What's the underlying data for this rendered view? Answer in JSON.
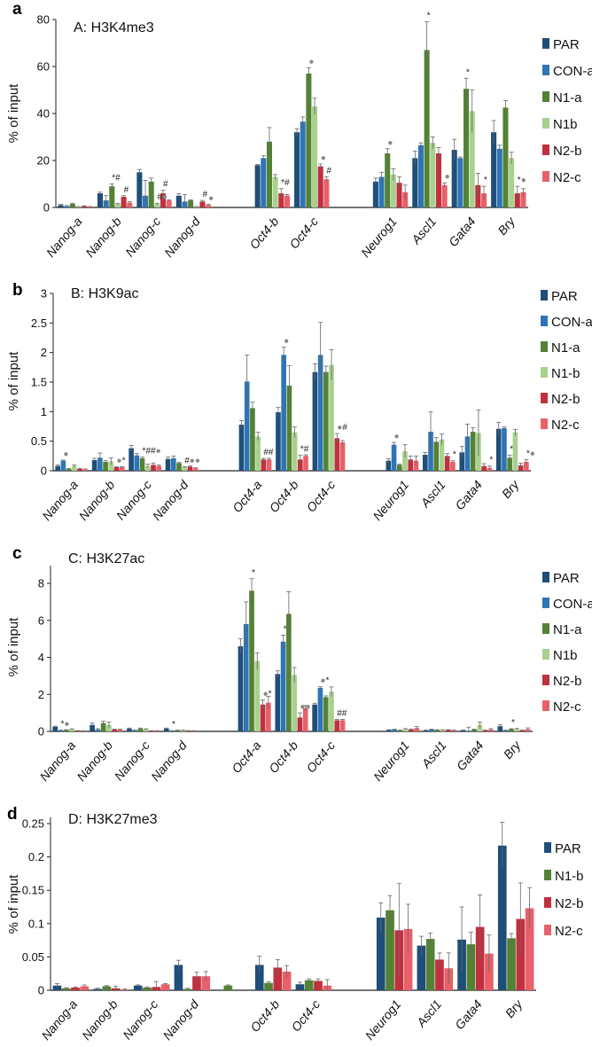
{
  "chart_data": [
    {
      "type": "bar",
      "panel_letter": "a",
      "title": "A: H3K4me3",
      "ylabel": "% of input",
      "ylim": [
        0,
        80
      ],
      "yticks": [
        0,
        20,
        40,
        60,
        80
      ],
      "ytick_labels": [
        "0",
        "20",
        "40",
        "60",
        "80"
      ],
      "categories": [
        "Nanog-a",
        "Nanog-b",
        "Nanog-c",
        "Nanog-d",
        "",
        "Oct4-b",
        "Oct4-c",
        "",
        "Neurog1",
        "Ascl1",
        "Gata4",
        "Bry"
      ],
      "legend_position": "right",
      "series": [
        {
          "name": "PAR",
          "color": "#1f4e79",
          "values": [
            1,
            6,
            15,
            5,
            null,
            18,
            32,
            null,
            11,
            21,
            24.5,
            32
          ],
          "err": [
            0.3,
            0.5,
            1,
            0.8,
            null,
            0.3,
            1.5,
            null,
            1.5,
            3,
            4.5,
            5
          ]
        },
        {
          "name": "CON-a",
          "color": "#2e75b6",
          "values": [
            0.5,
            3,
            5,
            2.5,
            null,
            21,
            36.5,
            null,
            13,
            26.5,
            21,
            25
          ],
          "err": [
            0.3,
            2,
            6.5,
            3,
            null,
            1,
            2,
            null,
            2,
            1,
            0.5,
            1.5
          ]
        },
        {
          "name": "N1-a",
          "color": "#548235",
          "values": [
            1.5,
            9,
            11,
            3,
            null,
            28,
            57,
            null,
            23,
            67,
            50.5,
            42.5
          ],
          "err": [
            0.3,
            1,
            1.5,
            0.3,
            null,
            6,
            2.5,
            null,
            2,
            12,
            4.5,
            3
          ]
        },
        {
          "name": "N1b",
          "color": "#a9d18e",
          "values": [
            0.3,
            1.5,
            1.5,
            0.3,
            null,
            13,
            43,
            null,
            14,
            27.5,
            41,
            21
          ],
          "err": [
            0.1,
            0.3,
            0.3,
            0.1,
            null,
            1,
            3.5,
            null,
            2.5,
            2.5,
            9,
            2.5
          ]
        },
        {
          "name": "N2-b",
          "color": "#c0303f",
          "values": [
            0.5,
            4.5,
            6,
            2.5,
            null,
            6,
            17.5,
            null,
            10.5,
            23,
            9.5,
            6
          ],
          "err": [
            0.2,
            0.5,
            1.3,
            0.5,
            null,
            2,
            1,
            null,
            2.5,
            2.5,
            5,
            3
          ]
        },
        {
          "name": "N2-c",
          "color": "#e8606a",
          "values": [
            0.3,
            2,
            3,
            1,
            null,
            5,
            12,
            null,
            6.5,
            9.5,
            6,
            6.5
          ],
          "err": [
            0.1,
            0.5,
            0.3,
            0.3,
            null,
            0.5,
            1,
            null,
            3,
            1,
            3,
            1.5
          ]
        }
      ],
      "annotations": [
        {
          "cat": 1,
          "series": 2,
          "text": "*#"
        },
        {
          "cat": 1,
          "series": 4,
          "text": "#"
        },
        {
          "cat": 2,
          "series": 3,
          "text": "#●"
        },
        {
          "cat": 2,
          "series": 4,
          "text": "#"
        },
        {
          "cat": 3,
          "series": 4,
          "text": "#"
        },
        {
          "cat": 3,
          "series": 5,
          "text": "●"
        },
        {
          "cat": 5,
          "series": 4,
          "text": "*#"
        },
        {
          "cat": 6,
          "series": 2,
          "text": "●"
        },
        {
          "cat": 6,
          "series": 4,
          "text": "●"
        },
        {
          "cat": 6,
          "series": 5,
          "text": "#"
        },
        {
          "cat": 8,
          "series": 2,
          "text": "●"
        },
        {
          "cat": 9,
          "series": 2,
          "text": "*"
        },
        {
          "cat": 9,
          "series": 5,
          "text": "●"
        },
        {
          "cat": 10,
          "series": 2,
          "text": "*"
        },
        {
          "cat": 10,
          "series": 5,
          "text": "*"
        },
        {
          "cat": 11,
          "series": 4,
          "text": "*●"
        }
      ]
    },
    {
      "type": "bar",
      "panel_letter": "b",
      "title": "B: H3K9ac",
      "ylabel": "% of input",
      "ylim": [
        0,
        3
      ],
      "yticks": [
        0,
        0.5,
        1,
        1.5,
        2,
        2.5,
        3
      ],
      "ytick_labels": [
        "0",
        "0.5",
        "1",
        "1.5",
        "2",
        "2.5",
        "3"
      ],
      "categories": [
        "Nanog-a",
        "Nanog-b",
        "Nanog-c",
        "Nanog-d",
        "",
        "Oct4-a",
        "Oct4-b",
        "Oct4-c",
        "",
        "Neurog1",
        "Ascl1",
        "Gata4",
        "Bry"
      ],
      "legend_position": "right",
      "series": [
        {
          "name": "PAR",
          "color": "#1f4e79",
          "values": [
            0.08,
            0.18,
            0.38,
            0.2,
            null,
            0.78,
            0.99,
            1.67,
            null,
            0.17,
            0.27,
            0.31,
            0.71
          ],
          "err": [
            0.02,
            0.03,
            0.05,
            0.03,
            null,
            0.07,
            0.08,
            0.14,
            null,
            0.03,
            0.04,
            0.1,
            0.11
          ]
        },
        {
          "name": "CON-a",
          "color": "#2e75b6",
          "values": [
            0.17,
            0.22,
            0.26,
            0.21,
            null,
            1.51,
            1.96,
            1.96,
            null,
            0.44,
            0.66,
            0.58,
            0.72
          ],
          "err": [
            0.01,
            0.08,
            0.03,
            0.04,
            null,
            0.45,
            0.13,
            0.55,
            null,
            0.04,
            0.34,
            0.21,
            0.02
          ]
        },
        {
          "name": "N1-a",
          "color": "#548235",
          "values": [
            0.03,
            0.15,
            0.21,
            0.13,
            null,
            1.06,
            1.44,
            1.67,
            null,
            0.1,
            0.49,
            0.66,
            0.22
          ],
          "err": [
            0.01,
            0.02,
            0.02,
            0.01,
            null,
            0.1,
            0.34,
            0.1,
            null,
            0.01,
            0.07,
            0.07,
            0.04
          ]
        },
        {
          "name": "N1-b",
          "color": "#a9d18e",
          "values": [
            0.08,
            0.16,
            0.08,
            0.06,
            null,
            0.58,
            0.65,
            1.79,
            null,
            0.33,
            0.53,
            0.64,
            0.65
          ],
          "err": [
            0.02,
            0.06,
            0.03,
            0.01,
            null,
            0.07,
            0.09,
            0.26,
            null,
            0.11,
            0.09,
            0.39,
            0.05
          ]
        },
        {
          "name": "N2-b",
          "color": "#c0303f",
          "values": [
            0.03,
            0.06,
            0.1,
            0.07,
            null,
            0.19,
            0.19,
            0.55,
            null,
            0.19,
            0.25,
            0.08,
            0.09
          ],
          "err": [
            0.01,
            0.01,
            0.03,
            0.01,
            null,
            0.02,
            0.07,
            0.08,
            null,
            0.06,
            0.04,
            0.04,
            0.04
          ]
        },
        {
          "name": "N2-c",
          "color": "#e8606a",
          "values": [
            0.02,
            0.06,
            0.08,
            0.04,
            null,
            0.19,
            0.25,
            0.48,
            null,
            0.17,
            0.15,
            0.05,
            0.15
          ],
          "err": [
            0.01,
            0.01,
            0.02,
            0.01,
            null,
            0.02,
            0.02,
            0.03,
            null,
            0.08,
            0.02,
            0.03,
            0.04
          ]
        }
      ],
      "annotations": [
        {
          "cat": 0,
          "series": 1,
          "text": "●"
        },
        {
          "cat": 1,
          "series": 4,
          "text": "●*"
        },
        {
          "cat": 2,
          "series": 2,
          "text": "*##●"
        },
        {
          "cat": 3,
          "series": 3,
          "text": "#●●"
        },
        {
          "cat": 5,
          "series": 4,
          "text": "##"
        },
        {
          "cat": 6,
          "series": 1,
          "text": "●"
        },
        {
          "cat": 6,
          "series": 4,
          "text": "*#"
        },
        {
          "cat": 7,
          "series": 4,
          "text": "●#"
        },
        {
          "cat": 9,
          "series": 1,
          "text": "●"
        },
        {
          "cat": 10,
          "series": 5,
          "text": "*"
        },
        {
          "cat": 11,
          "series": 5,
          "text": "*"
        },
        {
          "cat": 12,
          "series": 2,
          "text": "*"
        },
        {
          "cat": 12,
          "series": 5,
          "text": "*●"
        }
      ]
    },
    {
      "type": "bar",
      "panel_letter": "c",
      "title": "C: H3K27ac",
      "ylabel": "% of input",
      "ylim": [
        0,
        9
      ],
      "yticks": [
        0,
        2,
        4,
        6,
        8
      ],
      "ytick_labels": [
        "0",
        "2",
        "4",
        "6",
        "8"
      ],
      "categories": [
        "Nanog-a",
        "Nanog-b",
        "Nanog-c",
        "Nanog-d",
        "",
        "Oct4-a",
        "Oct4-b",
        "Oct4-c",
        "",
        "Neurog1",
        "Ascl1",
        "Gata4",
        "Bry"
      ],
      "legend_position": "right",
      "series": [
        {
          "name": "PAR",
          "color": "#1f4e79",
          "values": [
            0.25,
            0.35,
            0.15,
            0.15,
            null,
            4.6,
            3.1,
            1.45,
            null,
            0.07,
            0.05,
            0.05,
            0.28
          ],
          "err": [
            0.03,
            0.1,
            0.03,
            0.03,
            null,
            0.4,
            0.17,
            0.07,
            null,
            0.02,
            0.02,
            0.02,
            0.08
          ]
        },
        {
          "name": "CON-a",
          "color": "#2e75b6",
          "values": [
            0.05,
            0.1,
            0.05,
            0.03,
            null,
            5.8,
            4.85,
            2.35,
            null,
            0.1,
            0.1,
            0.03,
            0.05
          ],
          "err": [
            0.02,
            0.05,
            0.02,
            0.01,
            null,
            1.2,
            0.35,
            0.06,
            null,
            0.02,
            0.02,
            0.2,
            0.02
          ]
        },
        {
          "name": "N1-a",
          "color": "#548235",
          "values": [
            0.07,
            0.45,
            0.15,
            0.05,
            null,
            7.6,
            6.35,
            1.85,
            null,
            0.05,
            0.07,
            0.1,
            0.12
          ],
          "err": [
            0.02,
            0.1,
            0.03,
            0.02,
            null,
            0.65,
            1.2,
            0.07,
            null,
            0.02,
            0.02,
            0.02,
            0.02
          ]
        },
        {
          "name": "N1b",
          "color": "#a9d18e",
          "values": [
            0.12,
            0.35,
            0.12,
            0.05,
            null,
            3.8,
            3.05,
            2.15,
            null,
            0.12,
            0.07,
            0.35,
            0.12
          ],
          "err": [
            0.02,
            0.15,
            0.02,
            0.02,
            null,
            0.45,
            0.4,
            0.25,
            null,
            0.03,
            0.02,
            0.15,
            0.04
          ]
        },
        {
          "name": "N2-b",
          "color": "#c0303f",
          "values": [
            0.03,
            0.1,
            0.03,
            0.03,
            null,
            1.45,
            0.75,
            0.6,
            null,
            0.1,
            0.07,
            0.05,
            0.05
          ],
          "err": [
            0.01,
            0.02,
            0.01,
            0.01,
            null,
            0.25,
            0.25,
            0.05,
            null,
            0.03,
            0.02,
            0.02,
            0.02
          ]
        },
        {
          "name": "N2-c",
          "color": "#e8606a",
          "values": [
            0.03,
            0.1,
            0.03,
            0.03,
            null,
            1.55,
            1.25,
            0.6,
            null,
            0.18,
            0.05,
            0.1,
            0.12
          ],
          "err": [
            0.01,
            0.02,
            0.01,
            0.01,
            null,
            0.35,
            0.15,
            0.05,
            null,
            0.08,
            0.02,
            0.05,
            0.07
          ]
        }
      ],
      "annotations": [
        {
          "cat": 0,
          "series": 1,
          "text": "*●"
        },
        {
          "cat": 3,
          "series": 1,
          "text": "*"
        },
        {
          "cat": 5,
          "series": 2,
          "text": "*"
        },
        {
          "cat": 5,
          "series": 4,
          "text": "●*"
        },
        {
          "cat": 6,
          "series": 1,
          "text": "*"
        },
        {
          "cat": 6,
          "series": 4,
          "text": "●●"
        },
        {
          "cat": 7,
          "series": 1,
          "text": "●*"
        },
        {
          "cat": 7,
          "series": 4,
          "text": "##"
        },
        {
          "cat": 12,
          "series": 2,
          "text": "*"
        }
      ]
    },
    {
      "type": "bar",
      "panel_letter": "d",
      "title": "D: H3K27me3",
      "ylabel": "% of input",
      "ylim": [
        0,
        0.25
      ],
      "yticks": [
        0,
        0.05,
        0.1,
        0.15,
        0.2,
        0.25
      ],
      "ytick_labels": [
        "0",
        "0.05",
        "0.1",
        "0.15",
        "0.2",
        "0.25"
      ],
      "categories": [
        "Nanog-a",
        "Nanog-b",
        "Nanog-c",
        "Nanog-d",
        "",
        "Oct4-b",
        "Oct4-c",
        "",
        "Neurog1",
        "Ascl1",
        "Gata4",
        "Bry"
      ],
      "legend_position": "right",
      "series": [
        {
          "name": "PAR",
          "color": "#1f4e79",
          "values": [
            0.007,
            0.002,
            0.007,
            0.038,
            null,
            0.038,
            0.009,
            null,
            0.109,
            0.067,
            0.076,
            0.217
          ],
          "err": [
            0.003,
            0.001,
            0.001,
            0.007,
            null,
            0.013,
            0.003,
            null,
            0.022,
            0.014,
            0.049,
            0.035
          ]
        },
        {
          "name": "N1-b",
          "color": "#548235",
          "values": [
            0.003,
            0.006,
            0.004,
            0.002,
            0.007,
            0.011,
            0.015,
            null,
            0.12,
            0.077,
            0.069,
            0.078
          ],
          "err": [
            0.001,
            0.001,
            0.001,
            0.001,
            0.001,
            0.002,
            0.002,
            null,
            0.022,
            0.009,
            0.018,
            0.007
          ]
        },
        {
          "name": "N2-b",
          "color": "#c0303f",
          "values": [
            0.004,
            0.003,
            0.005,
            0.021,
            null,
            0.034,
            0.014,
            null,
            0.09,
            0.046,
            0.095,
            0.107
          ],
          "err": [
            0.001,
            0.003,
            0.008,
            0.006,
            null,
            0.012,
            0.003,
            null,
            0.07,
            0.01,
            0.048,
            0.054
          ]
        },
        {
          "name": "N2-c",
          "color": "#e8606a",
          "values": [
            0.006,
            0.001,
            0.009,
            0.021,
            null,
            0.028,
            0.007,
            null,
            0.092,
            0.033,
            0.055,
            0.123
          ],
          "err": [
            0.002,
            0.001,
            0.001,
            0.007,
            null,
            0.009,
            0.009,
            null,
            0.037,
            0.023,
            0.028,
            0.031
          ]
        }
      ],
      "annotations": []
    }
  ]
}
